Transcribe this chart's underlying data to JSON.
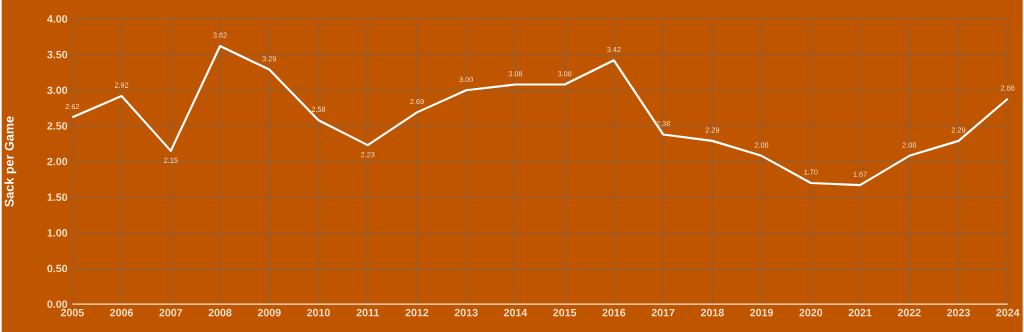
{
  "chart_data": {
    "type": "line",
    "ylabel": "Sack per Game",
    "categories": [
      "2005",
      "2006",
      "2007",
      "2008",
      "2009",
      "2010",
      "2011",
      "2012",
      "2013",
      "2014",
      "2015",
      "2016",
      "2017",
      "2018",
      "2019",
      "2020",
      "2021",
      "2022",
      "2023",
      "2024"
    ],
    "values": [
      2.62,
      2.92,
      2.15,
      3.62,
      3.29,
      2.58,
      2.23,
      2.69,
      3.0,
      3.08,
      3.08,
      3.42,
      2.38,
      2.29,
      2.08,
      1.7,
      1.67,
      2.08,
      2.29,
      2.88
    ],
    "value_labels": [
      "2.62",
      "2.92",
      "2.15",
      "3.62",
      "3.29",
      "2.58",
      "2.23",
      "2.69",
      "3.00",
      "3.08",
      "3.08",
      "3.42",
      "2.38",
      "2.29",
      "2.08",
      "1.70",
      "1.67",
      "2.08",
      "2.29",
      "2.88"
    ],
    "color": "#ffffff",
    "ylim": [
      0,
      4
    ],
    "yticks": [
      {
        "value": 0,
        "label": "0.00"
      },
      {
        "value": 0.5,
        "label": "0.50"
      },
      {
        "value": 1,
        "label": "1.00"
      },
      {
        "value": 1.5,
        "label": "1.50"
      },
      {
        "value": 2,
        "label": "2.00"
      },
      {
        "value": 2.5,
        "label": "2.50"
      },
      {
        "value": 3,
        "label": "3.00"
      },
      {
        "value": 3.5,
        "label": "3.50"
      },
      {
        "value": 4,
        "label": "4.00"
      }
    ],
    "grid": true,
    "marker": "none",
    "line_style": "solid"
  }
}
